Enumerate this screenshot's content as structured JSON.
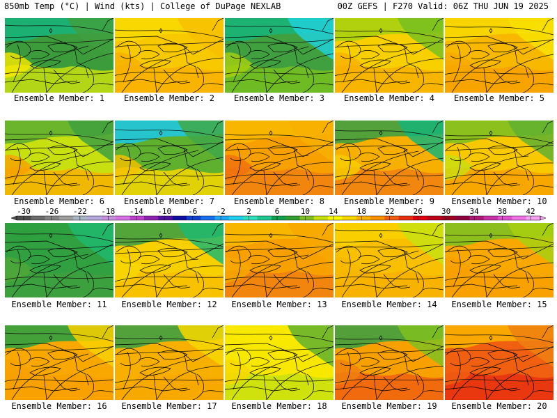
{
  "header": {
    "left": "850mb Temp (°C) | Wind (kts) | College of DuPage NEXLAB",
    "right": "00Z GEFS | F270 Valid: 06Z THU JUN 19 2025"
  },
  "colorbar": {
    "tick_labels": [
      "-30",
      "-26",
      "-22",
      "-18",
      "-14",
      "-10",
      "-6",
      "-2",
      "2",
      "6",
      "10",
      "14",
      "18",
      "22",
      "26",
      "30",
      "34",
      "38",
      "42"
    ],
    "colors": [
      "#4d4d4d",
      "#6b6b6b",
      "#858585",
      "#9f9f9f",
      "#a8b8c8",
      "#b4a8dc",
      "#c890e0",
      "#d870e8",
      "#c040d0",
      "#9020b0",
      "#5010a0",
      "#1010a0",
      "#1040d0",
      "#1870f0",
      "#20a8f8",
      "#20d0f0",
      "#30e0c0",
      "#20c890",
      "#10a050",
      "#30a030",
      "#80c020",
      "#c8e010",
      "#f8f800",
      "#f8d800",
      "#f8b000",
      "#f89000",
      "#f06010",
      "#e83010",
      "#e00010",
      "#c00018",
      "#a00020",
      "#900040",
      "#b01878",
      "#c830a8",
      "#e050d0",
      "#f070e8",
      "#f8a0f0"
    ]
  },
  "members": [
    {
      "label": "Ensemble Member: 1",
      "colors": {
        "main": "#3c9c3c",
        "n": "#18b478",
        "ne": "#40a040",
        "s": "#c8e010",
        "sw": "#f8e800"
      }
    },
    {
      "label": "Ensemble Member: 2",
      "colors": {
        "main": "#f8c800",
        "n": "#f8d800",
        "ne": "#f8c000",
        "s": "#f8b000",
        "sw": "#f8b000"
      }
    },
    {
      "label": "Ensemble Member: 3",
      "colors": {
        "main": "#40a040",
        "n": "#18b478",
        "ne": "#20d0d8",
        "s": "#78c020",
        "sw": "#a8d010"
      }
    },
    {
      "label": "Ensemble Member: 4",
      "colors": {
        "main": "#f8d000",
        "n": "#a8d010",
        "ne": "#78c020",
        "s": "#f8b000",
        "sw": "#f8b000"
      }
    },
    {
      "label": "Ensemble Member: 5",
      "colors": {
        "main": "#f8b800",
        "n": "#f8d800",
        "ne": "#f8e000",
        "s": "#f8a000",
        "sw": "#f8a800"
      }
    },
    {
      "label": "Ensemble Member: 6",
      "colors": {
        "main": "#c8e010",
        "n": "#60b030",
        "ne": "#40a040",
        "s": "#f8b000",
        "sw": "#f8a000"
      }
    },
    {
      "label": "Ensemble Member: 7",
      "colors": {
        "main": "#60b030",
        "n": "#20c8e0",
        "ne": "#40a848",
        "s": "#f8d800",
        "sw": "#f8c000"
      }
    },
    {
      "label": "Ensemble Member: 8",
      "colors": {
        "main": "#f8a000",
        "n": "#f8b800",
        "ne": "#f8b000",
        "s": "#f08010",
        "sw": "#f07010"
      }
    },
    {
      "label": "Ensemble Member: 9",
      "colors": {
        "main": "#f8b000",
        "n": "#40a040",
        "ne": "#18b478",
        "s": "#f08010",
        "sw": "#f8d000"
      }
    },
    {
      "label": "Ensemble Member: 10",
      "colors": {
        "main": "#f8c800",
        "n": "#80c020",
        "ne": "#60b030",
        "s": "#f8a000",
        "sw": "#c8e010"
      }
    },
    {
      "label": "Ensemble Member: 11",
      "colors": {
        "main": "#30a040",
        "n": "#30a040",
        "ne": "#20b870",
        "s": "#40a040",
        "sw": "#50a838"
      }
    },
    {
      "label": "Ensemble Member: 12",
      "colors": {
        "main": "#f8d000",
        "n": "#40a040",
        "ne": "#20b870",
        "s": "#f8c000",
        "sw": "#f8d800"
      }
    },
    {
      "label": "Ensemble Member: 13",
      "colors": {
        "main": "#f8a000",
        "n": "#f8b800",
        "ne": "#f8a800",
        "s": "#f08010",
        "sw": "#f8a800"
      }
    },
    {
      "label": "Ensemble Member: 14",
      "colors": {
        "main": "#f8c000",
        "n": "#f8d000",
        "ne": "#c8e010",
        "s": "#f8b000",
        "sw": "#f8b800"
      }
    },
    {
      "label": "Ensemble Member: 15",
      "colors": {
        "main": "#f8a800",
        "n": "#80c020",
        "ne": "#a8d010",
        "s": "#f8a000",
        "sw": "#f8a000"
      }
    },
    {
      "label": "Ensemble Member: 16",
      "colors": {
        "main": "#f8a800",
        "n": "#30a040",
        "ne": "#f8d000",
        "s": "#f8a000",
        "sw": "#f8a000"
      }
    },
    {
      "label": "Ensemble Member: 17",
      "colors": {
        "main": "#f8b000",
        "n": "#40a040",
        "ne": "#f8d800",
        "s": "#f8a800",
        "sw": "#f8b000"
      }
    },
    {
      "label": "Ensemble Member: 18",
      "colors": {
        "main": "#f8e800",
        "n": "#f8e800",
        "ne": "#60b030",
        "s": "#c8e010",
        "sw": "#f8d800"
      }
    },
    {
      "label": "Ensemble Member: 19",
      "colors": {
        "main": "#f8a000",
        "n": "#40a040",
        "ne": "#80c020",
        "s": "#f06010",
        "sw": "#f08010"
      }
    },
    {
      "label": "Ensemble Member: 20",
      "colors": {
        "main": "#f06010",
        "n": "#f8b000",
        "ne": "#f08010",
        "s": "#e83010",
        "sw": "#f06010"
      }
    }
  ]
}
